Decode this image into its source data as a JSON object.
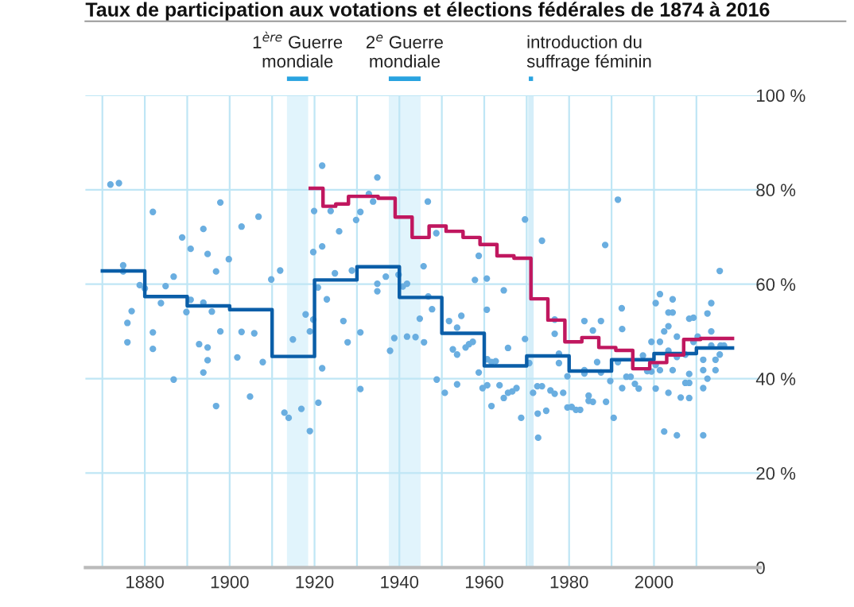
{
  "chart_data": {
    "type": "step",
    "title": "Taux de participation aux votations et élections fédérales de 1874 à 2016",
    "xlim": [
      1866,
      2025
    ],
    "ylim": [
      0,
      100
    ],
    "xticks": [
      {
        "value": 1870,
        "label": null
      },
      1880,
      {
        "value": 1890,
        "label": null
      },
      1900,
      {
        "value": 1910,
        "label": null
      },
      1920,
      {
        "value": 1930,
        "label": null
      },
      1940,
      {
        "value": 1950,
        "label": null
      },
      1960,
      {
        "value": 1970,
        "label": null
      },
      1980,
      {
        "value": 1990,
        "label": null
      },
      2000,
      {
        "value": 2010,
        "label": null
      }
    ],
    "yticks": [
      {
        "value": 0,
        "label": "0"
      },
      {
        "value": 20,
        "label": "20 %"
      },
      {
        "value": 40,
        "label": "40 %"
      },
      {
        "value": 60,
        "label": "60 %"
      },
      {
        "value": 80,
        "label": "80 %"
      },
      {
        "value": 100,
        "label": "100 %"
      }
    ],
    "grid": true,
    "legend": false,
    "bands": [
      {
        "axis": "x",
        "from": 1913.5,
        "to": 1918.5,
        "label": "1$^{ère}$ Guerre\nmondiale",
        "color": "#e1f4fc"
      },
      {
        "axis": "x",
        "from": 1937.5,
        "to": 1945,
        "label": "2$^{e}$ Guerre\nmondiale",
        "color": "#e1f4fc"
      }
    ],
    "ref_lines": [
      {
        "axis": "x",
        "value": 1971,
        "label": "introduction du\nsuffrage féminin",
        "color": "#d5eef9"
      }
    ],
    "series": [
      {
        "type": "scatter",
        "marker": "circle",
        "color": "#6aaee0",
        "x": [
          1871.9,
          1873.9,
          1874.9,
          1874.9,
          1878.8,
          1880.0,
          1875.9,
          1876.9,
          1875.9,
          1881.9,
          1881.9,
          1881.9,
          1883.8,
          1884.9,
          1886.8,
          1886.8,
          1888.8,
          1890.8,
          1890.8,
          1889.8,
          1893.8,
          1894.8,
          1893.8,
          1895.8,
          1892.8,
          1894.8,
          1894.8,
          1893.8,
          1896.8,
          1896.8,
          1897.8,
          1897.8,
          1899.8,
          1901.8,
          1902.8,
          1902.8,
          1904.8,
          1905.8,
          1906.8,
          1907.8,
          1909.8,
          1911.9,
          1912.9,
          1913.9,
          1914.9,
          1916.9,
          1917.9,
          1918.9,
          1918.9,
          1919.7,
          1919.7,
          1919.9,
          1920.8,
          1920.9,
          1921.8,
          1921.8,
          1921.8,
          1922.9,
          1923.8,
          1924.8,
          1925.8,
          1926.8,
          1927.8,
          1928.8,
          1929.8,
          1930.8,
          1930.8,
          1930.8,
          1932.8,
          1933.8,
          1934.8,
          1934.8,
          1934.8,
          1936.8,
          1937.8,
          1938.8,
          1939.8,
          1940.8,
          1941.8,
          1941.8,
          1943.8,
          1944.8,
          1945.7,
          1945.8,
          1946.7,
          1946.8,
          1947.7,
          1948.7,
          1948.8,
          1950.7,
          1951.7,
          1952.6,
          1953.6,
          1953.6,
          1954.6,
          1953.6,
          1955.6,
          1956.4,
          1957.3,
          1957.8,
          1958.7,
          1958.7,
          1959.6,
          1960.6,
          1960.6,
          1960.7,
          1960.7,
          1961.7,
          1961.7,
          1962.7,
          1963.6,
          1964.6,
          1964.6,
          1965.6,
          1965.6,
          1966.6,
          1967.6,
          1968.7,
          1969.6,
          1969.6,
          1970.6,
          1971.5,
          1972.5,
          1972.6,
          1972.7,
          1973.6,
          1973.6,
          1974.6,
          1975.6,
          1976.6,
          1976.6,
          1976.6,
          1977.6,
          1977.6,
          1978.6,
          1979.6,
          1979.6,
          1980.6,
          1981.6,
          1982.6,
          1983.6,
          1983.6,
          1983.6,
          1984.6,
          1984.6,
          1985.6,
          1985.6,
          1986.6,
          1987.5,
          1987.5,
          1988.5,
          1988.7,
          1989.7,
          1990.5,
          1991.5,
          1991.5,
          1992.4,
          1992.5,
          1992.5,
          1993.5,
          1994.5,
          1995.5,
          1996.4,
          1997.4,
          1998.4,
          1999.4,
          1999.4,
          2000.4,
          2000.4,
          2000.4,
          2001.4,
          2001.4,
          2001.4,
          2002.4,
          2002.4,
          2003.4,
          2003.4,
          2003.4,
          2003.4,
          2004.4,
          2004.4,
          2004.4,
          2005.4,
          2005.4,
          2005.4,
          2006.3,
          2007.4,
          2007.4,
          2008.3,
          2008.3,
          2008.3,
          2008.3,
          2009.3,
          2009.3,
          2010.3,
          2011.6,
          2011.6,
          2011.6,
          2011.6,
          2012.6,
          2012.6,
          2013.5,
          2013.5,
          2013.5,
          2014.5,
          2014.5,
          2015.5,
          2015.5,
          2015.7,
          2016.5
        ],
        "values": [
          81.1,
          81.4,
          64.0,
          62.7,
          59.8,
          59.1,
          51.8,
          54.3,
          47.7,
          75.3,
          49.8,
          46.3,
          56.0,
          59.6,
          61.6,
          39.8,
          69.9,
          67.5,
          56.7,
          54.1,
          71.7,
          66.4,
          56.1,
          54.2,
          47.3,
          46.6,
          43.9,
          41.3,
          62.7,
          34.2,
          77.3,
          50.0,
          65.3,
          44.5,
          72.2,
          49.9,
          36.2,
          49.6,
          74.3,
          43.5,
          61.0,
          62.9,
          32.8,
          31.7,
          48.3,
          33.6,
          53.6,
          50.0,
          28.9,
          66.8,
          52.5,
          75.5,
          59.3,
          34.9,
          85.1,
          68.0,
          42.2,
          56.8,
          75.5,
          62.3,
          71.2,
          52.2,
          47.7,
          62.9,
          73.6,
          75.3,
          49.8,
          37.8,
          79.1,
          77.5,
          82.6,
          60.1,
          58.5,
          61.6,
          45.9,
          48.6,
          62.0,
          59.5,
          60.1,
          48.9,
          48.8,
          52.7,
          63.8,
          47.7,
          77.5,
          57.4,
          54.7,
          70.8,
          39.8,
          37.0,
          52.2,
          46.2,
          45.1,
          50.8,
          53.3,
          38.8,
          46.6,
          47.3,
          47.8,
          60.9,
          66.0,
          41.3,
          38.0,
          61.2,
          54.6,
          44.1,
          38.6,
          43.5,
          34.2,
          43.7,
          38.6,
          58.7,
          35.9,
          46.5,
          37.0,
          37.3,
          38.0,
          31.7,
          73.7,
          48.4,
          43.3,
          37.0,
          38.4,
          32.6,
          27.5,
          69.2,
          38.4,
          33.2,
          37.5,
          52.5,
          49.5,
          36.8,
          45.3,
          43.3,
          37.0,
          40.5,
          33.9,
          34.0,
          33.4,
          33.4,
          52.2,
          41.8,
          41.1,
          36.4,
          35.3,
          50.2,
          35.1,
          43.5,
          52.2,
          41.3,
          68.3,
          35.1,
          39.5,
          31.7,
          77.9,
          43.5,
          54.9,
          50.5,
          38.0,
          40.4,
          40.4,
          38.9,
          37.9,
          44.9,
          41.6,
          47.8,
          41.5,
          56.0,
          42.9,
          37.9,
          57.9,
          47.8,
          41.8,
          28.8,
          50.0,
          54.0,
          51.1,
          45.9,
          37.0,
          54.0,
          56.8,
          41.8,
          48.9,
          44.6,
          28.0,
          36.0,
          39.1,
          45.1,
          52.7,
          41.0,
          39.1,
          35.9,
          52.9,
          47.8,
          48.9,
          28.0,
          44.0,
          38.0,
          41.8,
          40.0,
          53.8,
          56.0,
          50.0,
          47.0,
          44.0,
          41.8,
          62.8,
          45.1,
          47.0,
          47.0
        ]
      },
      {
        "color": "#0a5ea8",
        "x": [
          1870,
          1880,
          1890,
          1900,
          1910,
          1920,
          1930,
          1940,
          1950,
          1960,
          1970,
          1980,
          1990,
          2000,
          2010,
          2018.5
        ],
        "values": [
          62.8,
          57.4,
          55.4,
          54.6,
          44.7,
          60.9,
          63.7,
          57.2,
          49.6,
          42.7,
          44.8,
          41.6,
          44.0,
          45.3,
          46.5,
          46.5
        ]
      },
      {
        "color": "#c0175f",
        "x": [
          1919,
          1922,
          1925,
          1928,
          1935,
          1939,
          1943,
          1947,
          1951,
          1955,
          1959,
          1963,
          1967,
          1971,
          1975,
          1979,
          1983,
          1987,
          1991,
          1995,
          1999,
          2003,
          2007,
          2011,
          2018.5
        ],
        "values": [
          80.3,
          76.5,
          77.0,
          78.6,
          78.2,
          74.2,
          69.9,
          72.3,
          71.2,
          69.9,
          68.4,
          66.0,
          65.5,
          56.9,
          52.4,
          47.8,
          48.7,
          46.6,
          46.0,
          42.1,
          43.4,
          45.0,
          48.3,
          48.5,
          48.5
        ]
      }
    ]
  }
}
